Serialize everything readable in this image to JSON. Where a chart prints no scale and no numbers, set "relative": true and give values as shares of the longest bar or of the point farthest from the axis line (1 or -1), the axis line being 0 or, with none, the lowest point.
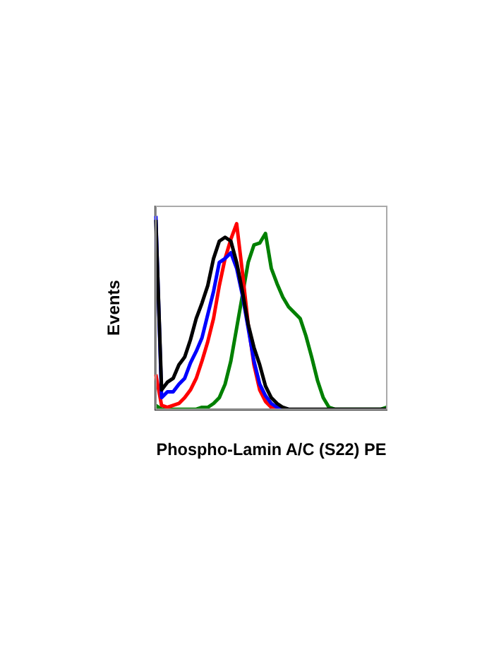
{
  "chart_data": {
    "type": "line",
    "relative": true,
    "xlabel": "Phospho-Lamin A/C (S22) PE",
    "ylabel": "Events",
    "tick_labels": false,
    "grid": false,
    "legend": false,
    "marker": "none",
    "line_style": "solid",
    "categories": [
      null,
      null,
      null,
      null,
      null,
      null,
      null,
      null,
      null,
      null,
      null,
      null,
      null,
      null,
      null,
      null,
      null,
      null,
      null,
      null,
      null,
      null,
      null,
      null,
      null,
      null,
      null,
      null,
      null,
      null,
      null,
      null,
      null,
      null,
      null,
      null,
      null,
      null,
      null,
      null,
      null
    ],
    "series": [
      {
        "color": "#000000",
        "values": [
          0.98,
          0.1,
          0.14,
          0.16,
          0.23,
          0.27,
          0.36,
          0.47,
          0.55,
          0.64,
          0.78,
          0.87,
          0.89,
          0.87,
          0.76,
          0.61,
          0.44,
          0.32,
          0.23,
          0.12,
          0.06,
          0.03,
          0.01,
          0,
          0,
          0,
          0,
          0,
          0,
          0,
          0,
          0,
          0,
          0,
          0,
          0,
          0,
          0,
          0,
          0,
          0
        ]
      },
      {
        "color": "#0000ff",
        "values": [
          1,
          0.06,
          0.09,
          0.09,
          0.13,
          0.16,
          0.24,
          0.3,
          0.37,
          0.49,
          0.61,
          0.76,
          0.78,
          0.81,
          0.73,
          0.59,
          0.42,
          0.25,
          0.13,
          0.07,
          0.03,
          0.01,
          0,
          0,
          null,
          null,
          null,
          null,
          null,
          null,
          null,
          null,
          null,
          null,
          null,
          null,
          null,
          null,
          null,
          null,
          null
        ]
      },
      {
        "color": "#ff0000",
        "values": [
          0.18,
          0.02,
          0.01,
          0.02,
          0.03,
          0.06,
          0.1,
          0.16,
          0.25,
          0.35,
          0.47,
          0.64,
          0.78,
          0.88,
          0.96,
          0.71,
          0.44,
          0.23,
          0.1,
          0.04,
          0.01,
          0,
          0,
          null,
          null,
          null,
          null,
          null,
          null,
          null,
          null,
          null,
          null,
          null,
          null,
          null,
          null,
          null,
          null,
          null,
          null
        ]
      },
      {
        "color": "#008000",
        "values": [
          0.02,
          0,
          0,
          0,
          0,
          0,
          0,
          0,
          0.01,
          0.01,
          0.03,
          0.06,
          0.13,
          0.25,
          0.42,
          0.59,
          0.76,
          0.85,
          0.86,
          0.91,
          0.73,
          0.65,
          0.58,
          0.53,
          0.5,
          0.47,
          0.38,
          0.27,
          0.15,
          0.06,
          0.01,
          0,
          0,
          0,
          0,
          0,
          0,
          0,
          0,
          0,
          0.01
        ]
      }
    ]
  }
}
